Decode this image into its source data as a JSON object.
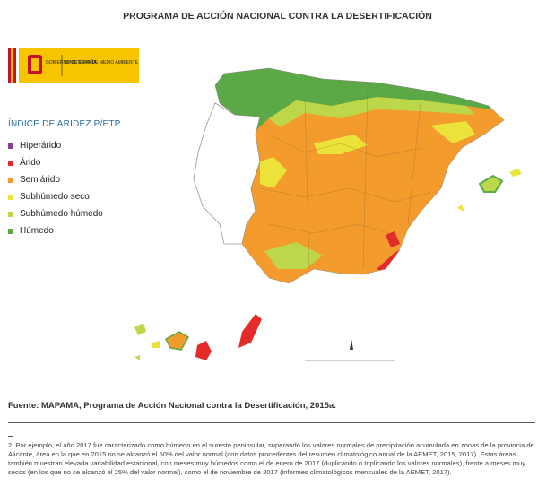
{
  "header": {
    "title": "PROGRAMA DE ACCIÓN NACIONAL CONTRA LA DESERTIFICACIÓN"
  },
  "logo": {
    "government": "GOBIERNO DE ESPAÑA",
    "ministry": "MINISTERIO DE MEDIO AMBIENTE"
  },
  "legend": {
    "title": "ÍNDICE DE ARIDEZ P/ETP",
    "items": [
      {
        "label": "Hiperárido",
        "color": "#8e3f8f"
      },
      {
        "label": "Árido",
        "color": "#e32c2a"
      },
      {
        "label": "Semiárido",
        "color": "#f39c2d"
      },
      {
        "label": "Subhúmedo seco",
        "color": "#ece33a"
      },
      {
        "label": "Subhúmedo húmedo",
        "color": "#bcd84a"
      },
      {
        "label": "Húmedo",
        "color": "#5aa946"
      }
    ]
  },
  "source": "Fuente: MAPAMA, Programa de Acción Nacional contra la Desertificación, 2015a.",
  "footnote": "2. Por ejemplo, el año 2017 fue caracterizado como húmedo en el sureste peninsular, superando los valores normales de precipitación acumulada en zonas de la provincia de Alicante, área en la que en 2015 no se alcanzó el 50% del valor normal (con datos procedentes del resumen climatológico anual de la AEMET, 2015, 2017). Estas áreas también muestran elevada variabilidad estacional, con meses muy húmedos como el de enero de 2017 (duplicando o triplicando los valores normales), frente a meses muy secos (en los que no se alcanzó el 25% del valor normal), como el de noviembre de 2017 (informes climatológicos mensuales de la AEMET, 2017)."
}
